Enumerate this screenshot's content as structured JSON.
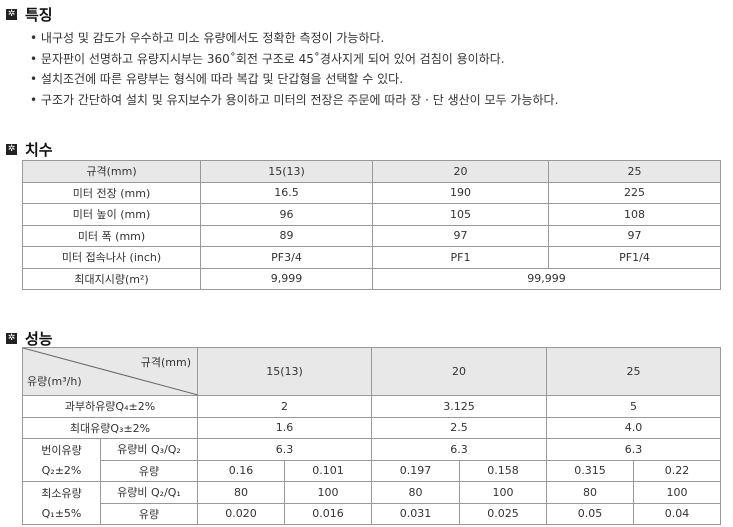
{
  "features": {
    "title": "특징",
    "items": [
      "내구성 및 감도가 우수하고 미소 유량에서도 정확한 측정이 가능하다.",
      "문자판이 선명하고 유량지시부는 360˚회전 구조로 45˚경사지게 되어 있어 검침이 용이하다.",
      "설치조건에 따른 유량부는 형식에 따라 복갑 및 단갑형을 선택할 수 있다.",
      "구조가 간단하여 설치 및 유지보수가 용이하고 미터의 전장은 주문에 따라 장 · 단 생산이 모두 가능하다."
    ]
  },
  "dimensions": {
    "title": "치수",
    "header": [
      "규격(mm)",
      "15(13)",
      "20",
      "25"
    ],
    "rows": [
      [
        "미터 전장  (mm)",
        "16.5",
        "190",
        "225"
      ],
      [
        "미터 높이  (mm)",
        "96",
        "105",
        "108"
      ],
      [
        "미터 폭 (mm)",
        "89",
        "97",
        "97"
      ],
      [
        "미터 접속나사 (inch)",
        "PF3/4",
        "PF1",
        "PF1/4"
      ]
    ],
    "max_label": "최대지시량(m²)",
    "max_values": [
      "9,999",
      "99,999"
    ]
  },
  "performance": {
    "title": "성능",
    "corner_top": "규격(mm)",
    "corner_bottom": "유량(m³/h)",
    "sizes": [
      "15(13)",
      "20",
      "25"
    ],
    "q4_label": "과부하유량Q₄±2%",
    "q4": [
      "2",
      "3.125",
      "5"
    ],
    "q3_label": "최대유량Q₃±2%",
    "q3": [
      "1.6",
      "2.5",
      "4.0"
    ],
    "q2_label1": "번이유량",
    "q2_label2": "Q₂±2%",
    "ratio32_label": "유량비 Q₃/Q₂",
    "ratio32": [
      "6.3",
      "6.3",
      "6.3"
    ],
    "flow_label": "유량",
    "q2": [
      "0.16",
      "0.101",
      "0.197",
      "0.158",
      "0.315",
      "0.22"
    ],
    "q1_label1": "최소유량",
    "q1_label2": "Q₁±5%",
    "ratio21_label": "유량비 Q₂/Q₁",
    "ratio21": [
      "80",
      "100",
      "80",
      "100",
      "80",
      "100"
    ],
    "q1": [
      "0.020",
      "0.016",
      "0.031",
      "0.025",
      "0.05",
      "0.04"
    ]
  }
}
